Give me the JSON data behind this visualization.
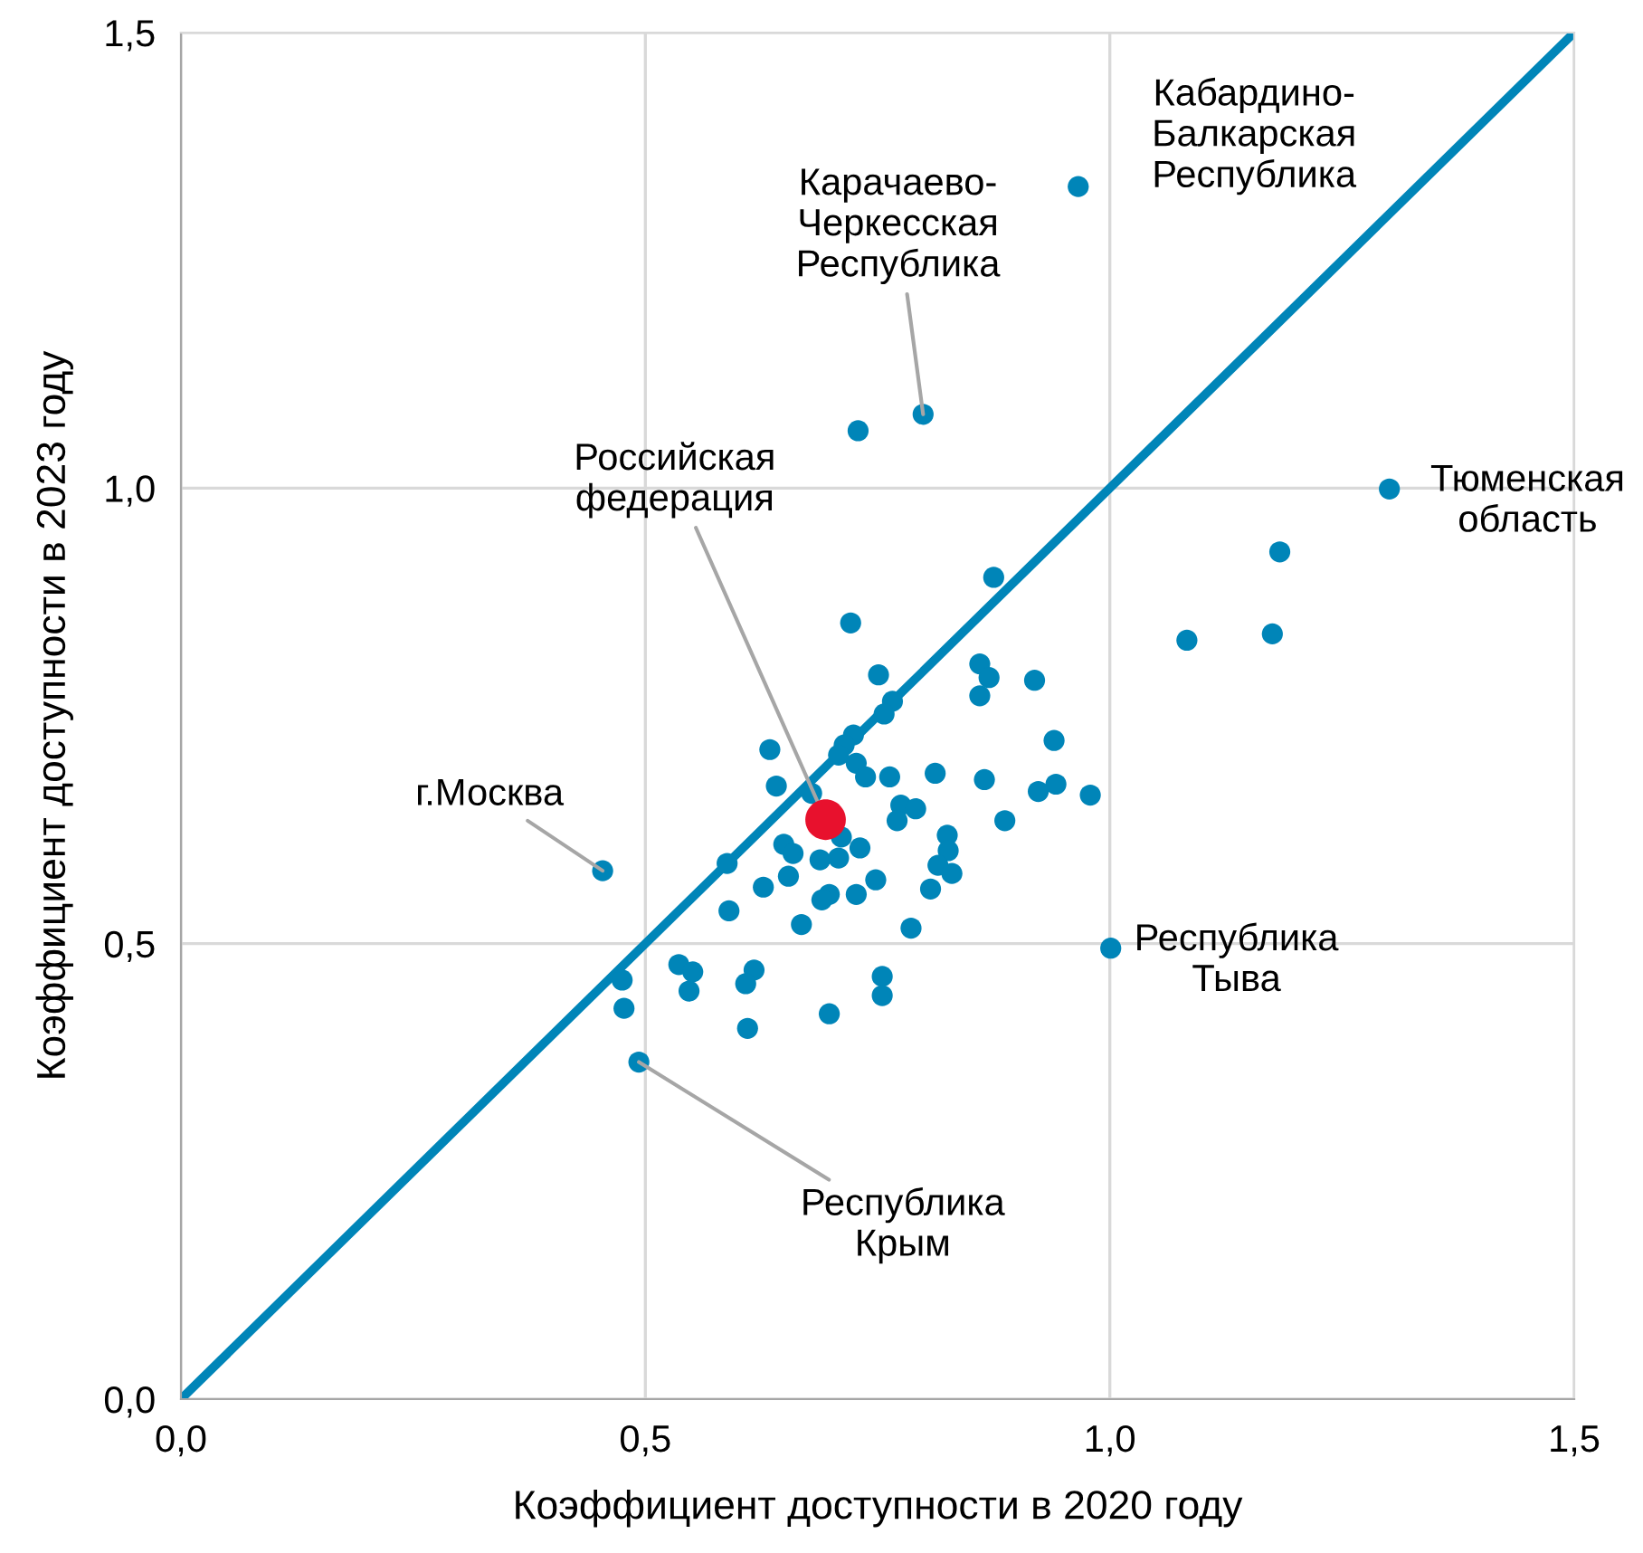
{
  "chart_data": {
    "type": "scatter",
    "xlabel": "Коэффициент доступности в 2020 году",
    "ylabel": "Коэффициент доступности в 2023 году",
    "xlim": [
      0,
      1.5
    ],
    "ylim": [
      0,
      1.5
    ],
    "xticks": [
      {
        "value": 0,
        "label": "0,0"
      },
      {
        "value": 0.5,
        "label": "0,5"
      },
      {
        "value": 1,
        "label": "1,0"
      },
      {
        "value": 1.5,
        "label": "1,5"
      }
    ],
    "yticks": [
      {
        "value": 0,
        "label": "0,0"
      },
      {
        "value": 0.5,
        "label": "0,5"
      },
      {
        "value": 1,
        "label": "1,0"
      },
      {
        "value": 1.5,
        "label": "1,5"
      }
    ],
    "grid": true,
    "marker": "circle",
    "series": [
      {
        "type": "line",
        "marker": "none",
        "color": "#0085b8",
        "x": [
          0,
          1.5
        ],
        "values": [
          0,
          1.5
        ]
      },
      {
        "color": "#0085b8",
        "x": [
          0.966,
          0.799,
          0.729,
          1.301,
          1.183,
          1.083,
          1.175,
          1.001,
          0.454,
          0.493,
          0.875,
          0.721,
          0.751,
          0.86,
          0.87,
          0.86,
          0.919,
          0.766,
          0.757,
          0.724,
          0.714,
          0.708,
          0.634,
          0.94,
          0.727,
          0.737,
          0.763,
          0.812,
          0.865,
          0.942,
          0.923,
          0.979,
          0.641,
          0.679,
          0.775,
          0.791,
          0.771,
          0.887,
          0.825,
          0.826,
          0.815,
          0.83,
          0.807,
          0.711,
          0.731,
          0.649,
          0.659,
          0.688,
          0.708,
          0.654,
          0.748,
          0.627,
          0.727,
          0.698,
          0.69,
          0.588,
          0.59,
          0.668,
          0.786,
          0.536,
          0.551,
          0.547,
          0.617,
          0.608,
          0.61,
          0.698,
          0.755,
          0.755,
          0.475,
          0.477
        ],
        "values": [
          1.331,
          1.081,
          1.063,
          0.999,
          0.93,
          0.833,
          0.84,
          0.495,
          0.58,
          0.37,
          0.902,
          0.852,
          0.795,
          0.807,
          0.792,
          0.772,
          0.789,
          0.766,
          0.752,
          0.729,
          0.718,
          0.707,
          0.713,
          0.723,
          0.698,
          0.683,
          0.683,
          0.687,
          0.68,
          0.675,
          0.667,
          0.663,
          0.673,
          0.665,
          0.652,
          0.648,
          0.635,
          0.635,
          0.619,
          0.602,
          0.586,
          0.577,
          0.56,
          0.617,
          0.605,
          0.609,
          0.599,
          0.592,
          0.594,
          0.574,
          0.57,
          0.562,
          0.554,
          0.554,
          0.548,
          0.588,
          0.536,
          0.521,
          0.517,
          0.477,
          0.469,
          0.448,
          0.471,
          0.456,
          0.407,
          0.423,
          0.464,
          0.443,
          0.46,
          0.429
        ]
      },
      {
        "color": "#e8112d",
        "x": [
          0.694
        ],
        "values": [
          0.636
        ]
      }
    ],
    "annotations": [
      {
        "text": "Кабардино-\nБалкарская\nРеспублика",
        "x": 0.966,
        "y": 1.331
      },
      {
        "text": "Карачаево-\nЧеркесская\nРеспублика",
        "x": 0.799,
        "y": 1.081
      },
      {
        "text": "Тюменская\nобласть",
        "x": 1.301,
        "y": 0.999
      },
      {
        "text": "Российская\nфедерация",
        "x": 0.694,
        "y": 0.636
      },
      {
        "text": "г.Москва",
        "x": 0.454,
        "y": 0.58
      },
      {
        "text": "Республика\nТыва",
        "x": 1.001,
        "y": 0.495
      },
      {
        "text": "Республика\nКрым",
        "x": 0.493,
        "y": 0.37
      }
    ]
  }
}
